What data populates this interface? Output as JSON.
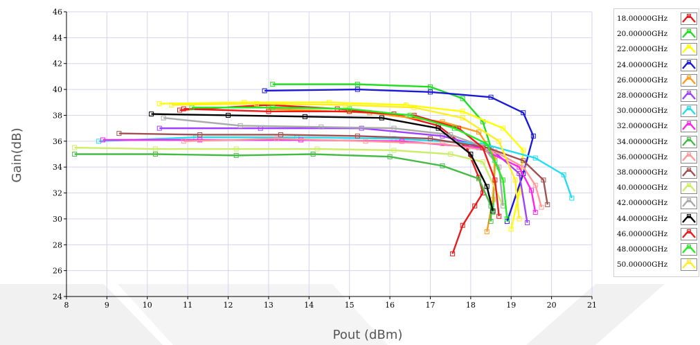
{
  "chart_data": {
    "type": "line",
    "title": "",
    "xlabel": "Pout (dBm)",
    "ylabel": "Gain(dB)",
    "xlim": [
      8,
      21
    ],
    "ylim": [
      24,
      46
    ],
    "xticks": [
      8,
      9,
      10,
      11,
      12,
      13,
      14,
      15,
      16,
      17,
      18,
      19,
      20,
      21
    ],
    "yticks": [
      24,
      26,
      28,
      30,
      32,
      34,
      36,
      38,
      40,
      42,
      44,
      46
    ],
    "grid": true,
    "legend_position": "right",
    "series": [
      {
        "name": "18.00000GHz",
        "color": "#e81a1a",
        "x": [
          10.8,
          13.0,
          14.7,
          16.1,
          17.2,
          17.9,
          18.2,
          18.3,
          18.1,
          17.8,
          17.55
        ],
        "y": [
          38.4,
          38.8,
          38.5,
          38.1,
          37.2,
          35.5,
          33.2,
          32.0,
          31.0,
          29.5,
          27.3
        ]
      },
      {
        "name": "20.00000GHz",
        "color": "#22dd22",
        "x": [
          13.1,
          15.2,
          17.0,
          17.8,
          18.3,
          18.6,
          18.55
        ],
        "y": [
          40.4,
          40.4,
          40.2,
          39.3,
          37.5,
          34.5,
          30.5
        ]
      },
      {
        "name": "22.00000GHz",
        "color": "#ffff00",
        "x": [
          10.3,
          12.4,
          14.5,
          16.4,
          17.8,
          18.8,
          19.3,
          19.2,
          19.0
        ],
        "y": [
          38.9,
          39.0,
          39.0,
          38.8,
          38.3,
          37.0,
          35.3,
          32.0,
          29.2
        ]
      },
      {
        "name": "24.00000GHz",
        "color": "#1a1ad8",
        "x": [
          12.9,
          15.2,
          17.0,
          18.5,
          19.3,
          19.55,
          19.3,
          18.9
        ],
        "y": [
          39.9,
          40.0,
          39.8,
          39.4,
          38.2,
          36.4,
          33.5,
          29.8
        ]
      },
      {
        "name": "26.00000GHz",
        "color": "#ff9a1a",
        "x": [
          13.0,
          15.5,
          17.3,
          18.2,
          18.6,
          18.55,
          18.4
        ],
        "y": [
          38.5,
          38.2,
          37.5,
          36.7,
          34.8,
          31.5,
          29.0
        ]
      },
      {
        "name": "28.00000GHz",
        "color": "#a040ff",
        "x": [
          10.3,
          12.8,
          15.3,
          17.3,
          18.5,
          19.2,
          19.4
        ],
        "y": [
          37.0,
          37.0,
          37.0,
          36.4,
          35.4,
          33.5,
          29.7
        ]
      },
      {
        "name": "30.00000GHz",
        "color": "#22ddee",
        "x": [
          8.8,
          11.2,
          13.7,
          16.1,
          18.3,
          19.6,
          20.3,
          20.5
        ],
        "y": [
          36.0,
          36.3,
          36.3,
          36.2,
          35.8,
          34.7,
          33.4,
          31.6
        ]
      },
      {
        "name": "32.00000GHz",
        "color": "#ff22ee",
        "x": [
          8.9,
          11.3,
          13.8,
          16.3,
          18.2,
          19.2,
          19.5,
          19.6
        ],
        "y": [
          36.1,
          36.1,
          36.1,
          36.0,
          35.5,
          34.0,
          32.2,
          30.5
        ]
      },
      {
        "name": "34.00000GHz",
        "color": "#44bb44",
        "x": [
          8.2,
          10.2,
          12.2,
          14.1,
          16.0,
          17.3,
          18.2,
          18.5,
          18.5
        ],
        "y": [
          35.0,
          35.0,
          34.9,
          35.0,
          34.8,
          34.1,
          33.1,
          31.0,
          29.8
        ]
      },
      {
        "name": "36.00000GHz",
        "color": "#ff9999",
        "x": [
          10.9,
          13.2,
          15.4,
          17.3,
          18.6,
          19.3,
          19.6,
          19.75
        ],
        "y": [
          36.0,
          36.2,
          36.0,
          35.8,
          35.2,
          34.0,
          32.6,
          30.9
        ]
      },
      {
        "name": "38.00000GHz",
        "color": "#a05050",
        "x": [
          9.3,
          11.3,
          13.3,
          15.2,
          17.0,
          18.4,
          19.3,
          19.8,
          19.9
        ],
        "y": [
          36.6,
          36.5,
          36.5,
          36.4,
          36.2,
          35.5,
          34.5,
          33.0,
          31.1
        ]
      },
      {
        "name": "40.00000GHz",
        "color": "#ccee66",
        "x": [
          8.2,
          10.2,
          12.2,
          14.2,
          16.1,
          17.5,
          18.3,
          18.8
        ],
        "y": [
          35.5,
          35.4,
          35.4,
          35.4,
          35.3,
          35.0,
          34.4,
          31.0
        ]
      },
      {
        "name": "42.00000GHz",
        "color": "#aaaaaa",
        "x": [
          10.4,
          12.3,
          14.3,
          16.1,
          17.5,
          18.3,
          18.7,
          18.8
        ],
        "y": [
          37.8,
          37.2,
          37.1,
          37.0,
          36.5,
          35.6,
          34.0,
          31.0
        ]
      },
      {
        "name": "44.00000GHz",
        "color": "#000000",
        "x": [
          10.1,
          12.0,
          13.9,
          15.8,
          17.2,
          18.0,
          18.4,
          18.55
        ],
        "y": [
          38.1,
          38.0,
          37.9,
          37.8,
          37.0,
          35.0,
          32.5,
          30.6
        ]
      },
      {
        "name": "46.00000GHz",
        "color": "#ee1a1a",
        "x": [
          10.9,
          13.0,
          15.0,
          16.6,
          17.7,
          18.3,
          18.6,
          18.7
        ],
        "y": [
          38.5,
          38.3,
          38.3,
          38.0,
          37.0,
          35.5,
          33.0,
          30.2
        ]
      },
      {
        "name": "48.00000GHz",
        "color": "#22ee22",
        "x": [
          11.1,
          13.1,
          15.0,
          16.5,
          17.6,
          18.4,
          18.8,
          18.9
        ],
        "y": [
          38.6,
          38.6,
          38.5,
          38.0,
          37.0,
          35.8,
          33.0,
          30.0
        ]
      },
      {
        "name": "50.00000GHz",
        "color": "#ffee22",
        "x": [
          10.6,
          12.7,
          14.9,
          16.6,
          17.8,
          18.7,
          19.1,
          19.2
        ],
        "y": [
          38.8,
          38.9,
          38.8,
          38.6,
          37.8,
          36.0,
          33.0,
          30.0
        ]
      }
    ]
  }
}
